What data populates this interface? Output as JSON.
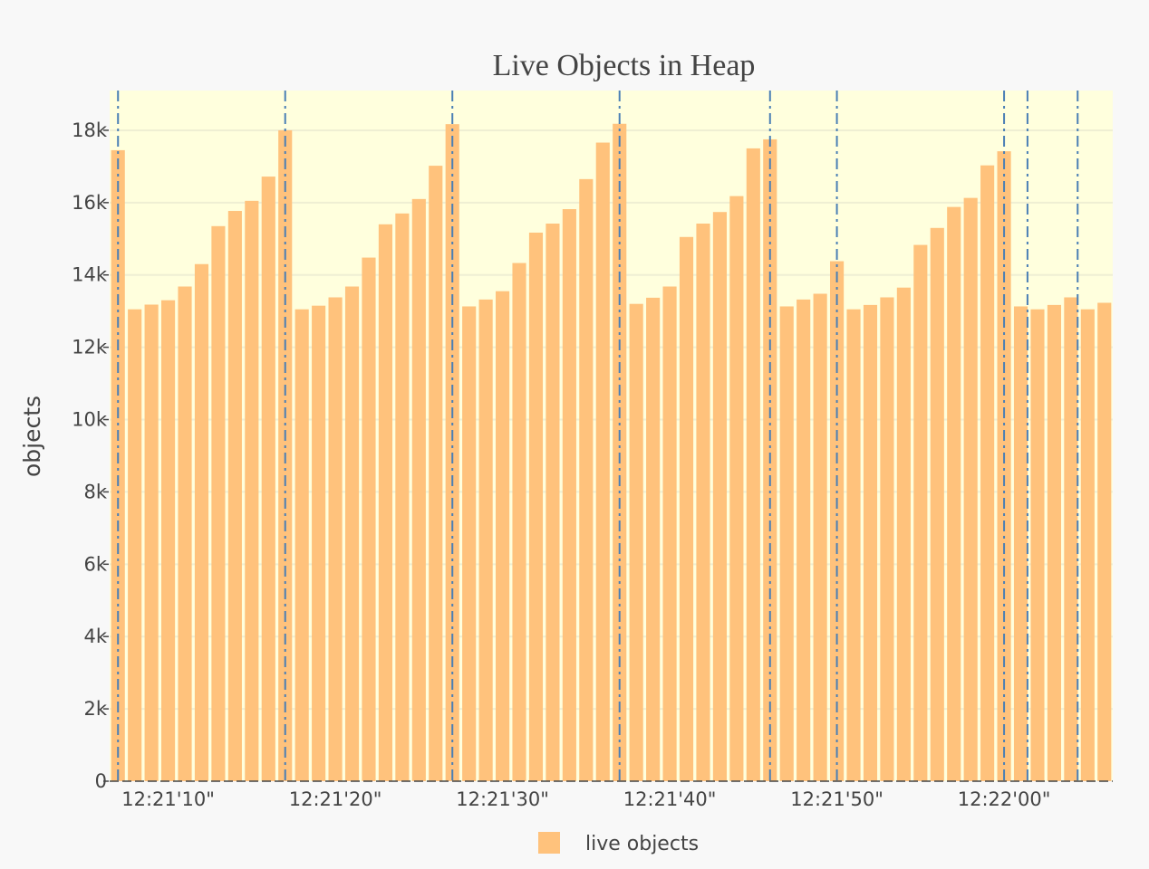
{
  "chart_data": {
    "type": "bar",
    "title": "Live Objects in Heap",
    "ylabel": "objects",
    "xlabel": "",
    "ylim": [
      0,
      19100
    ],
    "y_ticks": [
      {
        "value": 0,
        "label": "0"
      },
      {
        "value": 2000,
        "label": "2k"
      },
      {
        "value": 4000,
        "label": "4k"
      },
      {
        "value": 6000,
        "label": "6k"
      },
      {
        "value": 8000,
        "label": "8k"
      },
      {
        "value": 10000,
        "label": "10k"
      },
      {
        "value": 12000,
        "label": "12k"
      },
      {
        "value": 14000,
        "label": "14k"
      },
      {
        "value": 16000,
        "label": "16k"
      },
      {
        "value": 18000,
        "label": "18k"
      }
    ],
    "x_ticks": [
      {
        "index": 3.5,
        "label": "12:21'10\""
      },
      {
        "index": 13.5,
        "label": "12:21'20\""
      },
      {
        "index": 23.5,
        "label": "12:21'30\""
      },
      {
        "index": 33.5,
        "label": "12:21'40\""
      },
      {
        "index": 43.5,
        "label": "12:21'50\""
      },
      {
        "index": 53.5,
        "label": "12:22'00\""
      }
    ],
    "series": [
      {
        "name": "live objects",
        "color": "#ffc27c",
        "values": [
          17450,
          13050,
          13180,
          13300,
          13680,
          14300,
          15350,
          15770,
          16050,
          16720,
          18000,
          13050,
          13150,
          13380,
          13680,
          14480,
          15400,
          15700,
          16100,
          17020,
          18170,
          13130,
          13320,
          13550,
          14330,
          15170,
          15420,
          15820,
          16650,
          17660,
          18180,
          13200,
          13370,
          13680,
          15050,
          15420,
          15740,
          16180,
          17500,
          17750,
          13130,
          13320,
          13480,
          14380,
          13050,
          13170,
          13380,
          13650,
          14830,
          15300,
          15880,
          16130,
          17030,
          17420,
          13130,
          13050,
          13170,
          13380,
          13050,
          13230
        ]
      }
    ],
    "gc_event_positions": [
      0.5,
      10.5,
      20.5,
      30.5,
      39.5,
      43.5,
      53.5,
      54.9,
      57.9
    ],
    "gc_line_color": "#4a7fb5",
    "plot_background": "#ffffdd",
    "grid": true,
    "legend_position": "bottom-center"
  }
}
